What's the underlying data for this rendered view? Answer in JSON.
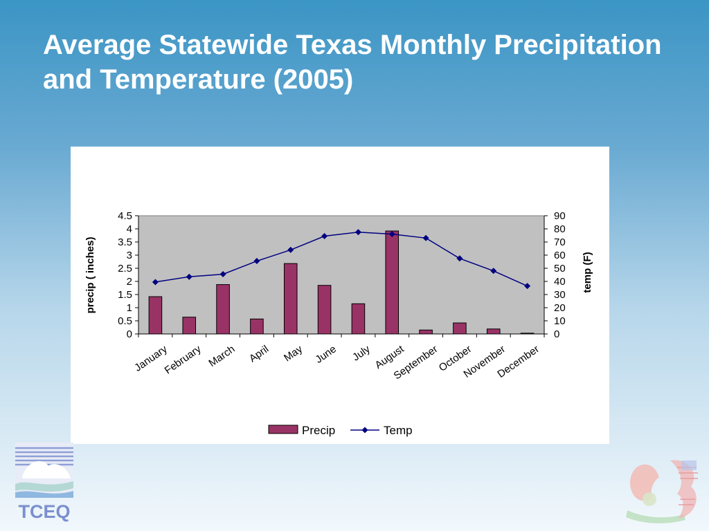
{
  "slide": {
    "title": "Average Statewide Texas Monthly Precipitation and Temperature (2005)"
  },
  "logos": {
    "left_text": "TCEQ"
  },
  "chart_data": {
    "type": "bar",
    "categories": [
      "January",
      "February",
      "March",
      "April",
      "May",
      "June",
      "July",
      "August",
      "September",
      "October",
      "November",
      "December"
    ],
    "series": [
      {
        "name": "Precip",
        "type": "bar",
        "axis": "left",
        "color": "#993366",
        "values": [
          1.42,
          0.64,
          1.88,
          0.57,
          2.68,
          1.85,
          1.15,
          3.92,
          0.15,
          0.42,
          0.19,
          0.03
        ]
      },
      {
        "name": "Temp",
        "type": "line",
        "axis": "right",
        "color": "#000080",
        "values": [
          39.5,
          43.5,
          45.5,
          55.5,
          64,
          74.5,
          77.5,
          76,
          73,
          57.5,
          48,
          36.5
        ]
      }
    ],
    "ylabel": "precip ( inches)",
    "y2label": "temp (F)",
    "ylim": [
      0,
      4.5
    ],
    "y2lim": [
      0,
      90
    ],
    "yticks": [
      "0",
      "0.5",
      "1",
      "1.5",
      "2",
      "2.5",
      "3",
      "3.5",
      "4",
      "4.5"
    ],
    "y2ticks": [
      "0",
      "10",
      "20",
      "30",
      "40",
      "50",
      "60",
      "70",
      "80",
      "90"
    ],
    "plot_background": "#c0c0c0",
    "grid": false,
    "legend": "bottom"
  }
}
